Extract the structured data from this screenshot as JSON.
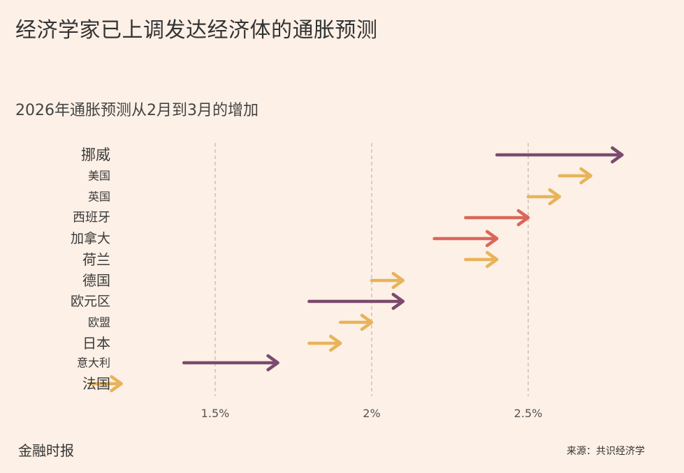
{
  "header": {
    "title": "经济学家已上调发达经济体的通胀预测",
    "subtitle": "2026年通胀预测从2月到3月的增加"
  },
  "footer": {
    "publisher": "金融时报",
    "source": "来源：共识经济学"
  },
  "colors": {
    "purple": "#7b4a6e",
    "red": "#d9675a",
    "gold": "#e8b35a",
    "grid": "#c9b8ac",
    "background": "#fdf0e6"
  },
  "chart_data": {
    "type": "arrow",
    "categories": [
      "挪威",
      "美国",
      "英国",
      "西班牙",
      "加拿大",
      "荷兰",
      "德国",
      "欧元区",
      "欧盟",
      "日本",
      "意大利",
      "法国"
    ],
    "series": [
      {
        "name": "2月",
        "values": [
          2.4,
          2.6,
          2.5,
          2.3,
          2.2,
          2.3,
          2.0,
          1.8,
          1.9,
          1.8,
          1.4,
          1.1
        ]
      },
      {
        "name": "3月",
        "values": [
          2.8,
          2.7,
          2.6,
          2.5,
          2.4,
          2.4,
          2.1,
          2.1,
          2.0,
          1.9,
          1.7,
          1.2
        ]
      }
    ],
    "arrow_colors": [
      "purple",
      "gold",
      "gold",
      "red",
      "red",
      "gold",
      "gold",
      "purple",
      "gold",
      "gold",
      "purple",
      "gold"
    ],
    "x_ticks": [
      1.5,
      2,
      2.5
    ],
    "x_tick_labels": [
      "1.5%",
      "2%",
      "2.5%"
    ],
    "xlim": [
      1.1,
      2.8
    ],
    "grid": "vertical-dashed"
  }
}
